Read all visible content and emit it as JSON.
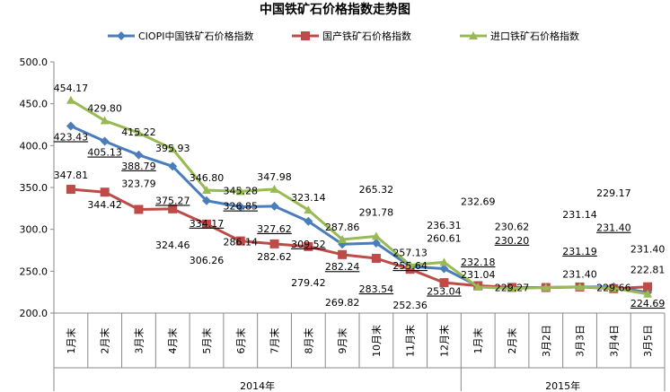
{
  "chart_data": {
    "type": "line",
    "title": "中国铁矿石价格指数走势图",
    "xlabel": "",
    "ylabel": "",
    "ylim": [
      200,
      500
    ],
    "yticks": [
      "200.0",
      "250.0",
      "300.0",
      "350.0",
      "400.0",
      "450.0",
      "500.0"
    ],
    "ytick_values": [
      200,
      250,
      300,
      350,
      400,
      450,
      500
    ],
    "categories": [
      "1月末",
      "2月末",
      "3月末",
      "4月末",
      "5月末",
      "6月末",
      "7月末",
      "8月末",
      "9月末",
      "10月末",
      "11月末",
      "12月末",
      "1月末",
      "2月末",
      "3月2日",
      "3月3日",
      "3月4日",
      "3月5日"
    ],
    "groups": [
      {
        "label": "2014年",
        "count": 12
      },
      {
        "label": "2015年",
        "count": 6
      }
    ],
    "legend_position": "top",
    "grid": false,
    "series": [
      {
        "name": "CIOPI中国铁矿石价格指数",
        "color": "#4a7ebb",
        "marker": "diamond",
        "values": [
          423.43,
          405.13,
          388.79,
          375.27,
          334.17,
          326.85,
          327.62,
          309.52,
          282.24,
          283.54,
          255.64,
          253.04,
          232.18,
          230.2,
          230.5,
          231.19,
          231.4,
          224.69
        ],
        "labels": [
          "423.43",
          "405.13",
          "388.79",
          "375.27",
          "334.17",
          "326.85",
          "327.62",
          "309.52",
          "282.24",
          "283.54",
          "255.64",
          "253.04",
          "232.18",
          "230.20",
          null,
          "231.19",
          "231.40",
          "224.69"
        ]
      },
      {
        "name": "国产铁矿石价格指数",
        "color": "#be4b48",
        "marker": "square",
        "values": [
          347.81,
          344.42,
          323.79,
          324.46,
          306.26,
          286.14,
          282.62,
          279.42,
          269.82,
          265.32,
          252.36,
          236.31,
          232.69,
          230.62,
          230.5,
          231.14,
          229.17,
          231.4
        ],
        "labels": [
          "347.81",
          "344.42",
          "323.79",
          "324.46",
          "306.26",
          "286.14",
          "282.62",
          "279.42",
          "269.82",
          "265.32",
          "252.36",
          "236.31",
          "232.69",
          "230.62",
          null,
          "231.14",
          "229.17",
          "231.40"
        ]
      },
      {
        "name": "进口铁矿石价格指数",
        "color": "#98b954",
        "marker": "triangle",
        "values": [
          454.17,
          429.8,
          415.22,
          395.93,
          346.8,
          345.28,
          347.98,
          323.14,
          287.86,
          291.78,
          257.13,
          260.61,
          231.04,
          229.27,
          230.5,
          231.4,
          229.66,
          222.81
        ],
        "labels": [
          "454.17",
          "429.80",
          "415.22",
          "395.93",
          "346.80",
          "345.28",
          "347.98",
          "323.14",
          "287.86",
          "291.78",
          "257.13",
          "260.61",
          "231.04",
          "229.27",
          null,
          "231.40",
          "229.66",
          "222.81"
        ]
      }
    ]
  }
}
